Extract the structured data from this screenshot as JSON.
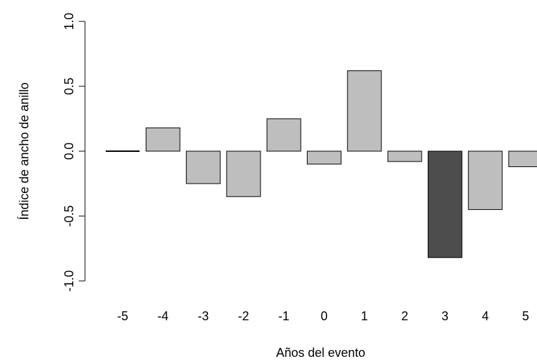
{
  "chart_data": {
    "type": "bar",
    "title": "",
    "xlabel": "Años del evento",
    "ylabel": "Índice de ancho de anillo",
    "categories": [
      "-5",
      "-4",
      "-3",
      "-2",
      "-1",
      "0",
      "1",
      "2",
      "3",
      "4",
      "5"
    ],
    "values": [
      0.0,
      0.18,
      -0.25,
      -0.35,
      0.25,
      -0.1,
      0.62,
      -0.08,
      -0.82,
      -0.45,
      -0.12
    ],
    "bar_colors": [
      "#bebebe",
      "#bebebe",
      "#bebebe",
      "#bebebe",
      "#bebebe",
      "#bebebe",
      "#bebebe",
      "#bebebe",
      "#4d4d4d",
      "#bebebe",
      "#bebebe"
    ],
    "ylim": [
      -1.0,
      1.0
    ],
    "yticks": [
      -1.0,
      -0.5,
      0.0,
      0.5,
      1.0
    ],
    "ytick_labels": [
      "-1.0",
      "-0.5",
      "0.0",
      "0.5",
      "1.0"
    ],
    "grid": false,
    "legend": "none"
  }
}
